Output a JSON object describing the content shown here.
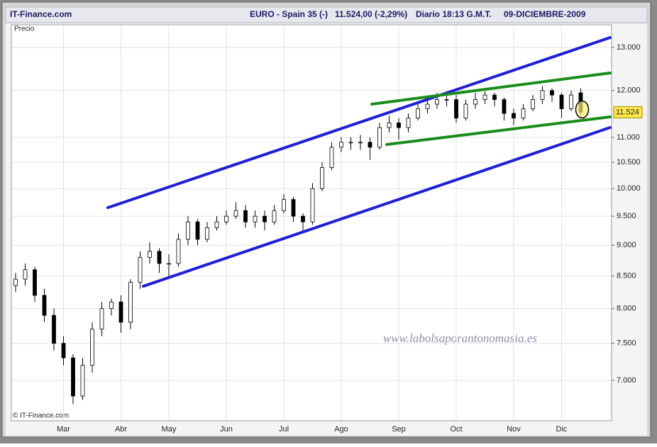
{
  "chart_data": {
    "type": "candlestick",
    "brand": "IT-Finance.com",
    "instrument": "EURO - Spain 35 (-)",
    "quote": "11.524,00 (-2,29%)",
    "session": "Diario  18:13  G.M.T.",
    "date": "09-DICIEMBRE-2009",
    "ylabel": "Precio",
    "copyright": "© IT-Finance.com",
    "watermark": "www.labolsaporantonomasia.es",
    "log_scale": true,
    "grid": true,
    "up_color": "#ffffff",
    "down_color": "#000000",
    "categories": [
      null,
      null,
      null,
      null,
      null,
      "Mar",
      null,
      null,
      null,
      null,
      null,
      "Abr",
      null,
      null,
      null,
      null,
      "May",
      null,
      null,
      null,
      null,
      null,
      "Jun",
      null,
      null,
      null,
      null,
      null,
      "Jul",
      null,
      null,
      null,
      null,
      null,
      "Ago",
      null,
      null,
      null,
      null,
      null,
      "Sep",
      null,
      null,
      null,
      null,
      null,
      "Oct",
      null,
      null,
      null,
      null,
      null,
      "Nov",
      null,
      null,
      null,
      null,
      "Dic",
      null,
      null
    ],
    "open": [
      8350,
      8450,
      8600,
      8200,
      7900,
      7500,
      7300,
      6800,
      7200,
      7700,
      8000,
      8100,
      7800,
      8400,
      8800,
      8900,
      8700,
      8700,
      9100,
      9400,
      9100,
      9300,
      9400,
      9500,
      9600,
      9400,
      9500,
      9400,
      9600,
      9800,
      9500,
      9400,
      10000,
      10400,
      10800,
      10900,
      10900,
      10900,
      10800,
      11200,
      11300,
      11200,
      11400,
      11600,
      11700,
      11800,
      11800,
      11400,
      11700,
      11800,
      11900,
      11800,
      11500,
      11400,
      11600,
      11800,
      12000,
      11900,
      11600,
      11950
    ],
    "high": [
      8550,
      8700,
      8650,
      8300,
      8000,
      7600,
      7350,
      7300,
      7800,
      8100,
      8150,
      8200,
      8450,
      8900,
      9050,
      8950,
      8850,
      9200,
      9500,
      9450,
      9400,
      9500,
      9600,
      9750,
      9700,
      9600,
      9600,
      9700,
      9900,
      9850,
      9550,
      10100,
      10500,
      10900,
      11000,
      11000,
      11050,
      11000,
      11300,
      11450,
      11400,
      11500,
      11700,
      11850,
      11950,
      11950,
      11900,
      11800,
      11950,
      11980,
      11950,
      11850,
      11600,
      11700,
      11900,
      12100,
      12050,
      11950,
      12000,
      12050
    ],
    "low": [
      8250,
      8350,
      8100,
      7800,
      7400,
      7200,
      6700,
      6750,
      7100,
      7600,
      7900,
      7650,
      7700,
      8300,
      8700,
      8550,
      8500,
      8650,
      9000,
      9000,
      9050,
      9250,
      9350,
      9450,
      9300,
      9300,
      9250,
      9350,
      9550,
      9400,
      9250,
      9350,
      9950,
      10350,
      10700,
      10750,
      10750,
      10550,
      10750,
      11100,
      10950,
      11100,
      11350,
      11500,
      11600,
      11650,
      11300,
      11350,
      11600,
      11700,
      11650,
      11350,
      11250,
      11350,
      11550,
      11700,
      11750,
      11400,
      11550,
      11450
    ],
    "close": [
      8450,
      8600,
      8200,
      7900,
      7500,
      7300,
      6800,
      7200,
      7700,
      8000,
      8100,
      7800,
      8400,
      8800,
      8900,
      8700,
      8700,
      9100,
      9400,
      9100,
      9300,
      9400,
      9500,
      9600,
      9400,
      9500,
      9400,
      9600,
      9800,
      9500,
      9400,
      10000,
      10400,
      10800,
      10900,
      10900,
      10900,
      10800,
      11200,
      11300,
      11200,
      11400,
      11600,
      11700,
      11800,
      11800,
      11400,
      11700,
      11800,
      11900,
      11800,
      11500,
      11400,
      11600,
      11800,
      12000,
      11900,
      11600,
      11900,
      11524
    ],
    "last_price": {
      "value": 11524,
      "label": "11.524"
    },
    "trendlines": [
      {
        "color": "#1f1fd6",
        "x": [
          9.63,
          62.07
        ],
        "values": [
          9652,
          13242
        ]
      },
      {
        "color": "#1f1fd6",
        "x": [
          13.33,
          62.07
        ],
        "values": [
          8340,
          11202
        ]
      },
      {
        "color": "#1a8c1a",
        "x": [
          37.19,
          62.07
        ],
        "values": [
          11700,
          12398
        ]
      },
      {
        "color": "#1a8c1a",
        "x": [
          38.74,
          62.07
        ],
        "values": [
          10854,
          11426
        ]
      }
    ],
    "ylim": [
      6494,
      13560
    ],
    "yticks": [
      {
        "value": 7000,
        "label": "7.000"
      },
      {
        "value": 7500,
        "label": "7.500"
      },
      {
        "value": 8000,
        "label": "8.000"
      },
      {
        "value": 8500,
        "label": "8.500"
      },
      {
        "value": 9000,
        "label": "9.000"
      },
      {
        "value": 9500,
        "label": "9.500"
      },
      {
        "value": 10000,
        "label": "10.000"
      },
      {
        "value": 10500,
        "label": "10.500"
      },
      {
        "value": 11000,
        "label": "11.000"
      },
      {
        "value": 12000,
        "label": "12.000"
      },
      {
        "value": 13000,
        "label": "13.000"
      }
    ]
  }
}
